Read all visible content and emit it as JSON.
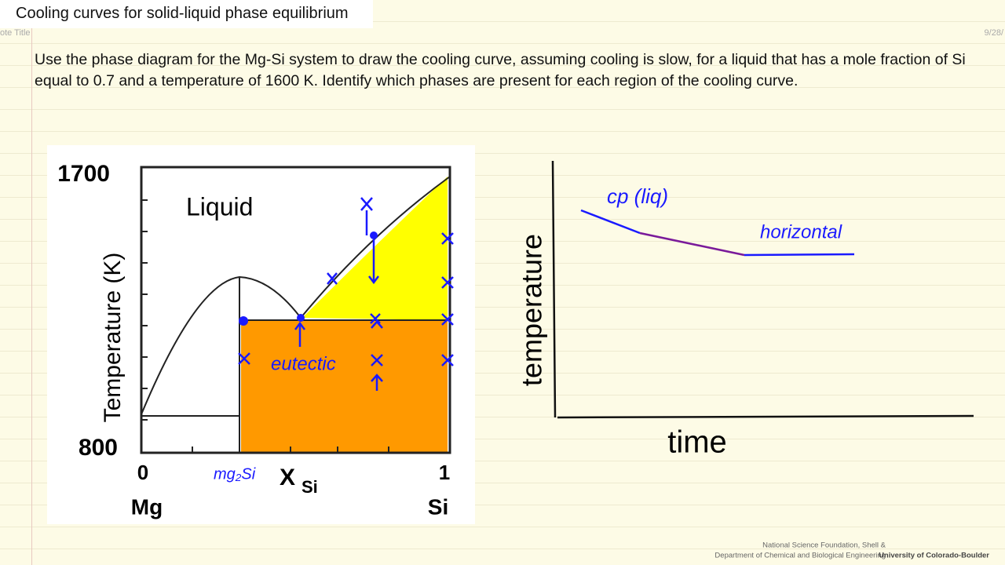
{
  "header": {
    "title": "Cooling curves for solid-liquid phase equilibrium",
    "page_label": "ote Title",
    "date": "9/28/"
  },
  "problem": {
    "text": "Use the phase diagram for the Mg-Si system to draw the cooling curve, assuming cooling is slow, for a liquid that has a mole fraction of Si equal to 0.7 and a temperature of 1600 K. Identify which phases are present for each region of the cooling curve."
  },
  "phase_diagram": {
    "y_top": "1700",
    "y_bottom": "800",
    "y_axis_label": "Temperature (K)",
    "region_label": "Liquid",
    "x_left": "0",
    "x_right": "1",
    "x_left_name": "Mg",
    "x_right_name": "Si",
    "x_axis_symbol": "X",
    "x_axis_subscript": "Si"
  },
  "annotations": {
    "compound": "mg₂Si",
    "eutectic": "eutectic"
  },
  "cooling_curve": {
    "y_axis_label": "temperature",
    "x_axis_label": "time",
    "label_liquid": "cp (liq)",
    "label_plateau": "horizontal"
  },
  "footer": {
    "line1": "National Science Foundation, Shell &",
    "line2": "Department of Chemical and Biological Engineering",
    "university": "University of Colorado-Boulder"
  }
}
